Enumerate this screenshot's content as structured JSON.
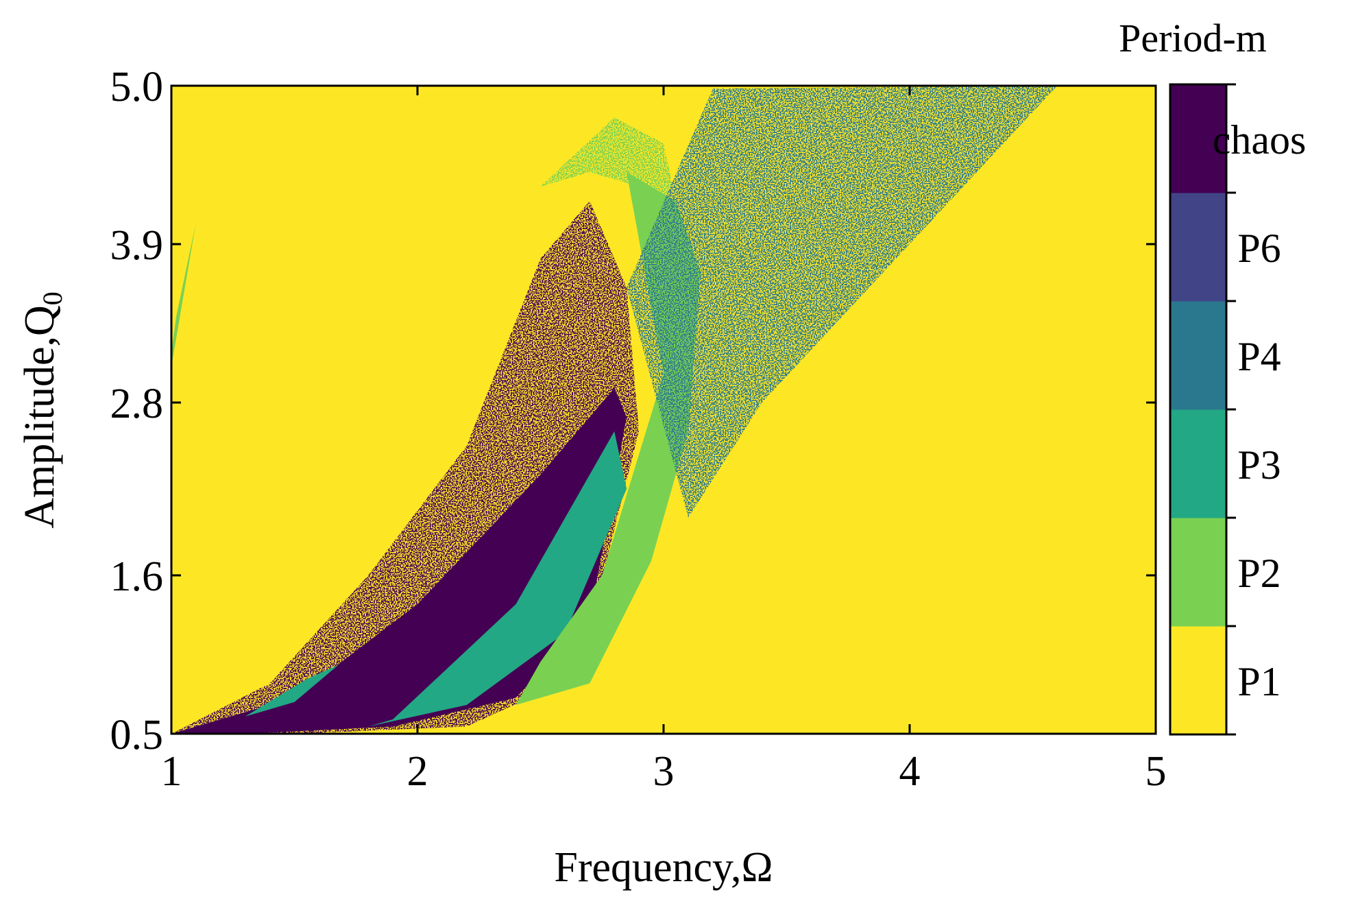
{
  "chart_data": {
    "type": "heatmap",
    "title": "",
    "xlabel": "Frequency,Ω",
    "ylabel": "Amplitude,Q",
    "ylabel_subscript": "0",
    "xlim": [
      1,
      5
    ],
    "ylim": [
      0.5,
      5.0
    ],
    "x_ticks": [
      "1",
      "2",
      "3",
      "4",
      "5"
    ],
    "x_tick_values": [
      1,
      2,
      3,
      4,
      5
    ],
    "y_ticks": [
      "0.5",
      "1.6",
      "2.8",
      "3.9",
      "5.0"
    ],
    "y_tick_values": [
      0.5,
      1.6,
      2.8,
      3.9,
      5.0
    ],
    "colorbar": {
      "title": "Period-m",
      "levels": [
        {
          "label": "P1",
          "color": "#fde725"
        },
        {
          "label": "P2",
          "color": "#7ad151"
        },
        {
          "label": "P3",
          "color": "#22a884"
        },
        {
          "label": "P4",
          "color": "#2a788e"
        },
        {
          "label": "P6",
          "color": "#414487"
        },
        {
          "label": "chaos",
          "color": "#440154"
        }
      ]
    },
    "background_level": "P1",
    "regions": [
      {
        "level": "P2",
        "description": "thin strip",
        "polygon": [
          [
            1.0,
            3.05
          ],
          [
            1.1,
            4.05
          ],
          [
            1.02,
            3.4
          ],
          [
            1.0,
            3.15
          ]
        ]
      },
      {
        "level": "chaos",
        "description": "scattered chaos tongue",
        "polygon": [
          [
            1.0,
            0.5
          ],
          [
            1.4,
            0.85
          ],
          [
            1.8,
            1.6
          ],
          [
            2.2,
            2.5
          ],
          [
            2.5,
            3.8
          ],
          [
            2.7,
            4.2
          ],
          [
            2.85,
            3.6
          ],
          [
            2.9,
            2.6
          ],
          [
            2.65,
            0.9
          ],
          [
            2.2,
            0.55
          ],
          [
            1.5,
            0.5
          ]
        ]
      },
      {
        "level": "chaos",
        "description": "solid chaos band",
        "polygon": [
          [
            1.0,
            0.5
          ],
          [
            1.5,
            0.75
          ],
          [
            2.0,
            1.4
          ],
          [
            2.5,
            2.3
          ],
          [
            2.8,
            2.9
          ],
          [
            2.85,
            2.7
          ],
          [
            2.7,
            1.3
          ],
          [
            2.4,
            0.75
          ],
          [
            1.9,
            0.55
          ],
          [
            1.3,
            0.5
          ]
        ]
      },
      {
        "level": "P3",
        "description": "period-3 band",
        "polygon": [
          [
            1.9,
            0.6
          ],
          [
            2.4,
            1.4
          ],
          [
            2.8,
            2.6
          ],
          [
            2.85,
            2.2
          ],
          [
            2.6,
            1.2
          ],
          [
            2.2,
            0.7
          ],
          [
            1.8,
            0.55
          ]
        ]
      },
      {
        "level": "P3",
        "description": "small period-3 island",
        "polygon": [
          [
            1.3,
            0.62
          ],
          [
            1.55,
            0.88
          ],
          [
            1.68,
            0.98
          ],
          [
            1.5,
            0.72
          ]
        ]
      },
      {
        "level": "P2",
        "description": "period-2 tongue",
        "polygon": [
          [
            2.4,
            0.7
          ],
          [
            2.7,
            0.85
          ],
          [
            2.95,
            1.7
          ],
          [
            3.1,
            2.6
          ],
          [
            3.15,
            3.7
          ],
          [
            3.05,
            4.2
          ],
          [
            2.85,
            4.4
          ],
          [
            3.0,
            3.0
          ],
          [
            2.75,
            1.6
          ],
          [
            2.5,
            1.0
          ]
        ]
      },
      {
        "level": "P2",
        "description": "scattered period-2 cap",
        "polygon": [
          [
            2.5,
            4.3
          ],
          [
            2.8,
            4.78
          ],
          [
            3.0,
            4.6
          ],
          [
            3.1,
            3.8
          ],
          [
            2.9,
            4.3
          ],
          [
            2.7,
            4.4
          ]
        ]
      },
      {
        "level": "P4",
        "description": "scattered period-4 fan",
        "polygon": [
          [
            2.85,
            3.6
          ],
          [
            3.2,
            4.98
          ],
          [
            4.6,
            5.0
          ],
          [
            3.4,
            2.8
          ],
          [
            3.1,
            2.0
          ]
        ]
      }
    ]
  }
}
